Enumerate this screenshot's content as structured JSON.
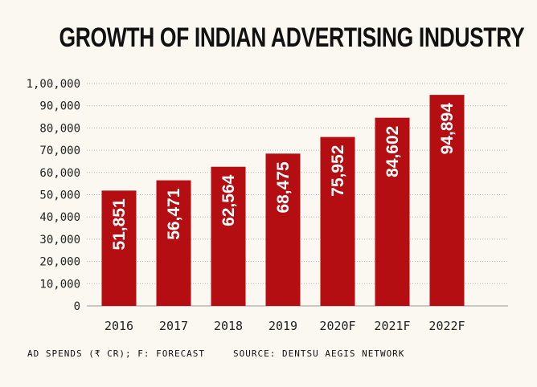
{
  "chart_data": {
    "type": "bar",
    "title": "GROWTH OF INDIAN ADVERTISING INDUSTRY",
    "categories": [
      "2016",
      "2017",
      "2018",
      "2019",
      "2020F",
      "2021F",
      "2022F"
    ],
    "values": [
      51851,
      56471,
      62564,
      68475,
      75952,
      84602,
      94894
    ],
    "value_labels": [
      "51,851",
      "56,471",
      "62,564",
      "68,475",
      "75,952",
      "84,602",
      "94,894"
    ],
    "ylim": [
      0,
      100000
    ],
    "yticks": [
      0,
      10000,
      20000,
      30000,
      40000,
      50000,
      60000,
      70000,
      80000,
      90000,
      100000
    ],
    "ytick_labels": [
      "0",
      "10,000",
      "20,000",
      "30,000",
      "40,000",
      "50,000",
      "60,000",
      "70,000",
      "80,000",
      "90,000",
      "1,00,000"
    ],
    "grid": true,
    "bar_color": "#b50e12",
    "label_color": "#ffffff"
  },
  "footer": {
    "note": "AD SPENDS (₹ CR); F: FORECAST",
    "source": "SOURCE: DENTSU AEGIS NETWORK"
  }
}
